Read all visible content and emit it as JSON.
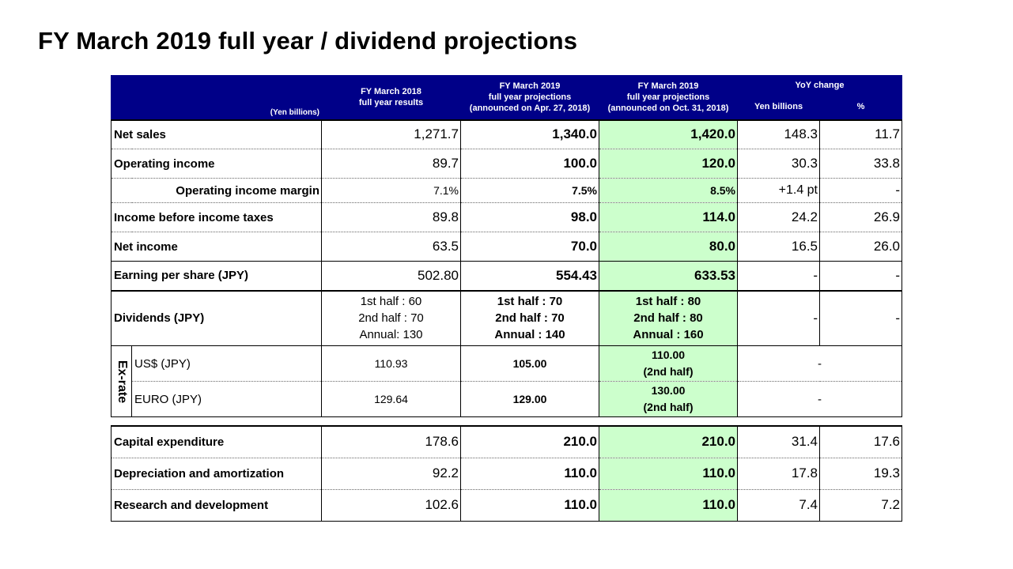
{
  "title": "FY March 2019 full year / dividend projections",
  "header": {
    "unit": "(Yen billions)",
    "col_2018": [
      "FY March 2018",
      "full year results"
    ],
    "col_proj_apr": [
      "FY March 2019",
      "full year projections",
      "(announced on Apr. 27, 2018)"
    ],
    "col_proj_oct": [
      "FY March 2019",
      "full year projections",
      "(announced on Oct. 31, 2018)"
    ],
    "yoy": "YoY change",
    "yoy_yen": "Yen billions",
    "yoy_pct": "%"
  },
  "rows": [
    {
      "label": "Net sales",
      "fy2018": "1,271.7",
      "apr": "1,340.0",
      "oct": "1,420.0",
      "yoy_yen": "148.3",
      "yoy_pct": "11.7"
    },
    {
      "label": "Operating income",
      "fy2018": "89.7",
      "apr": "100.0",
      "oct": "120.0",
      "yoy_yen": "30.3",
      "yoy_pct": "33.8"
    },
    {
      "label": "Operating income margin",
      "fy2018": "7.1%",
      "apr": "7.5%",
      "oct": "8.5%",
      "yoy_yen": "+1.4 pt",
      "yoy_pct": "-"
    },
    {
      "label": "Income before income taxes",
      "fy2018": "89.8",
      "apr": "98.0",
      "oct": "114.0",
      "yoy_yen": "24.2",
      "yoy_pct": "26.9"
    },
    {
      "label": "Net income",
      "fy2018": "63.5",
      "apr": "70.0",
      "oct": "80.0",
      "yoy_yen": "16.5",
      "yoy_pct": "26.0"
    },
    {
      "label": "Earning per share (JPY)",
      "fy2018": "502.80",
      "apr": "554.43",
      "oct": "633.53",
      "yoy_yen": "-",
      "yoy_pct": "-"
    }
  ],
  "dividends": {
    "label": "Dividends (JPY)",
    "fy2018": [
      "1st half : 60",
      "2nd half : 70",
      "Annual: 130"
    ],
    "apr": [
      "1st half : 70",
      "2nd half : 70",
      "Annual : 140"
    ],
    "oct": [
      "1st half : 80",
      "2nd half : 80",
      "Annual : 160"
    ],
    "yoy_yen": "-",
    "yoy_pct": "-"
  },
  "exrate": {
    "label": "Ex-rate",
    "usd": {
      "label": "US$ (JPY)",
      "fy2018": "110.93",
      "apr": "105.00",
      "oct": [
        "110.00",
        "(2nd half)"
      ],
      "yoy": "-"
    },
    "eur": {
      "label": "EURO (JPY)",
      "fy2018": "129.64",
      "apr": "129.00",
      "oct": [
        "130.00",
        "(2nd half)"
      ],
      "yoy": "-"
    }
  },
  "capex_rows": [
    {
      "label": "Capital expenditure",
      "fy2018": "178.6",
      "apr": "210.0",
      "oct": "210.0",
      "yoy_yen": "31.4",
      "yoy_pct": "17.6"
    },
    {
      "label": "Depreciation and amortization",
      "fy2018": "92.2",
      "apr": "110.0",
      "oct": "110.0",
      "yoy_yen": "17.8",
      "yoy_pct": "19.3"
    },
    {
      "label": "Research and development",
      "fy2018": "102.6",
      "apr": "110.0",
      "oct": "110.0",
      "yoy_yen": "7.4",
      "yoy_pct": "7.2"
    }
  ]
}
